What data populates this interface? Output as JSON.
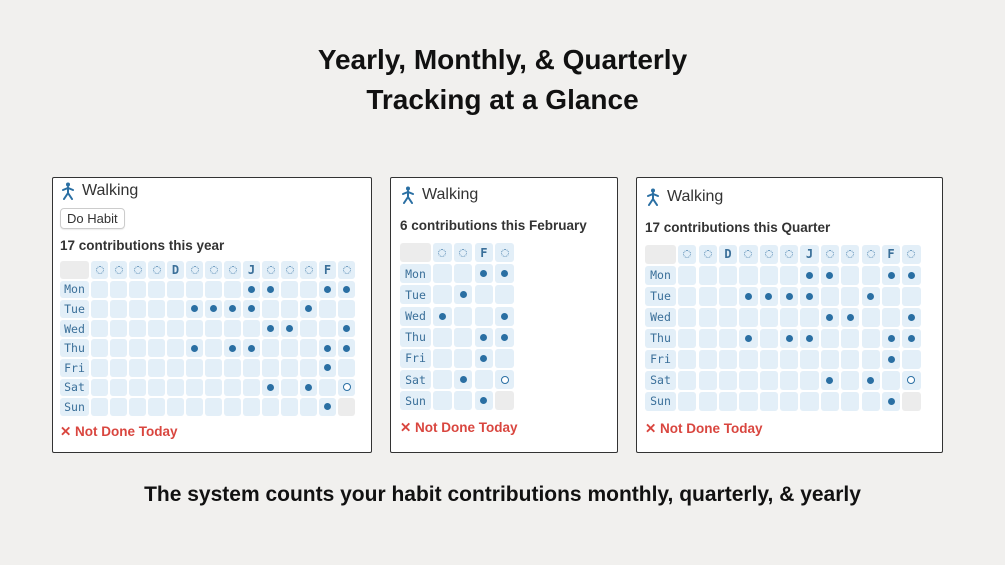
{
  "title_line1": "Yearly, Monthly, & Quarterly",
  "title_line2": "Tracking at a Glance",
  "caption": "The system counts your habit contributions monthly, quarterly, & yearly",
  "days": [
    "Mon",
    "Tue",
    "Wed",
    "Thu",
    "Fri",
    "Sat",
    "Sun"
  ],
  "colors": {
    "filled": "#2a6fa3",
    "cell": "#e3eff8",
    "not_done": "#d9463f"
  },
  "panels": [
    {
      "habit": "Walking",
      "icon": "walking-person-icon",
      "button": "Do Habit",
      "count": "17 contributions this year",
      "status": "✕ Not Done Today",
      "columns": [
        "",
        "",
        "",
        "",
        "D",
        "",
        "",
        "",
        "J",
        "",
        "",
        "",
        "F",
        ""
      ],
      "rows": [
        "........xx..xx",
        ".....xxxx..x..",
        ".........xx..x",
        ".....x.xx...xx",
        "............x.",
        ".........x.x.o",
        "............x-"
      ]
    },
    {
      "habit": "Walking",
      "icon": "walking-person-icon",
      "count": "6 contributions this February",
      "status": "✕ Not Done Today",
      "columns": [
        "",
        "",
        "F",
        ""
      ],
      "rows": [
        "..xx",
        ".x..",
        "x..x",
        "..xx",
        "..x.",
        ".x.o",
        "..x-"
      ]
    },
    {
      "habit": "Walking",
      "icon": "walking-person-icon",
      "count": "17 contributions this Quarter",
      "status": "✕ Not Done Today",
      "columns": [
        "",
        "",
        "D",
        "",
        "",
        "",
        "J",
        "",
        "",
        "",
        "F",
        ""
      ],
      "rows": [
        "......xx..xx",
        "...xxxx..x..",
        ".......xx..x",
        "...x.xx...xx",
        "..........x.",
        ".......x.x.o",
        "..........x-"
      ]
    }
  ]
}
